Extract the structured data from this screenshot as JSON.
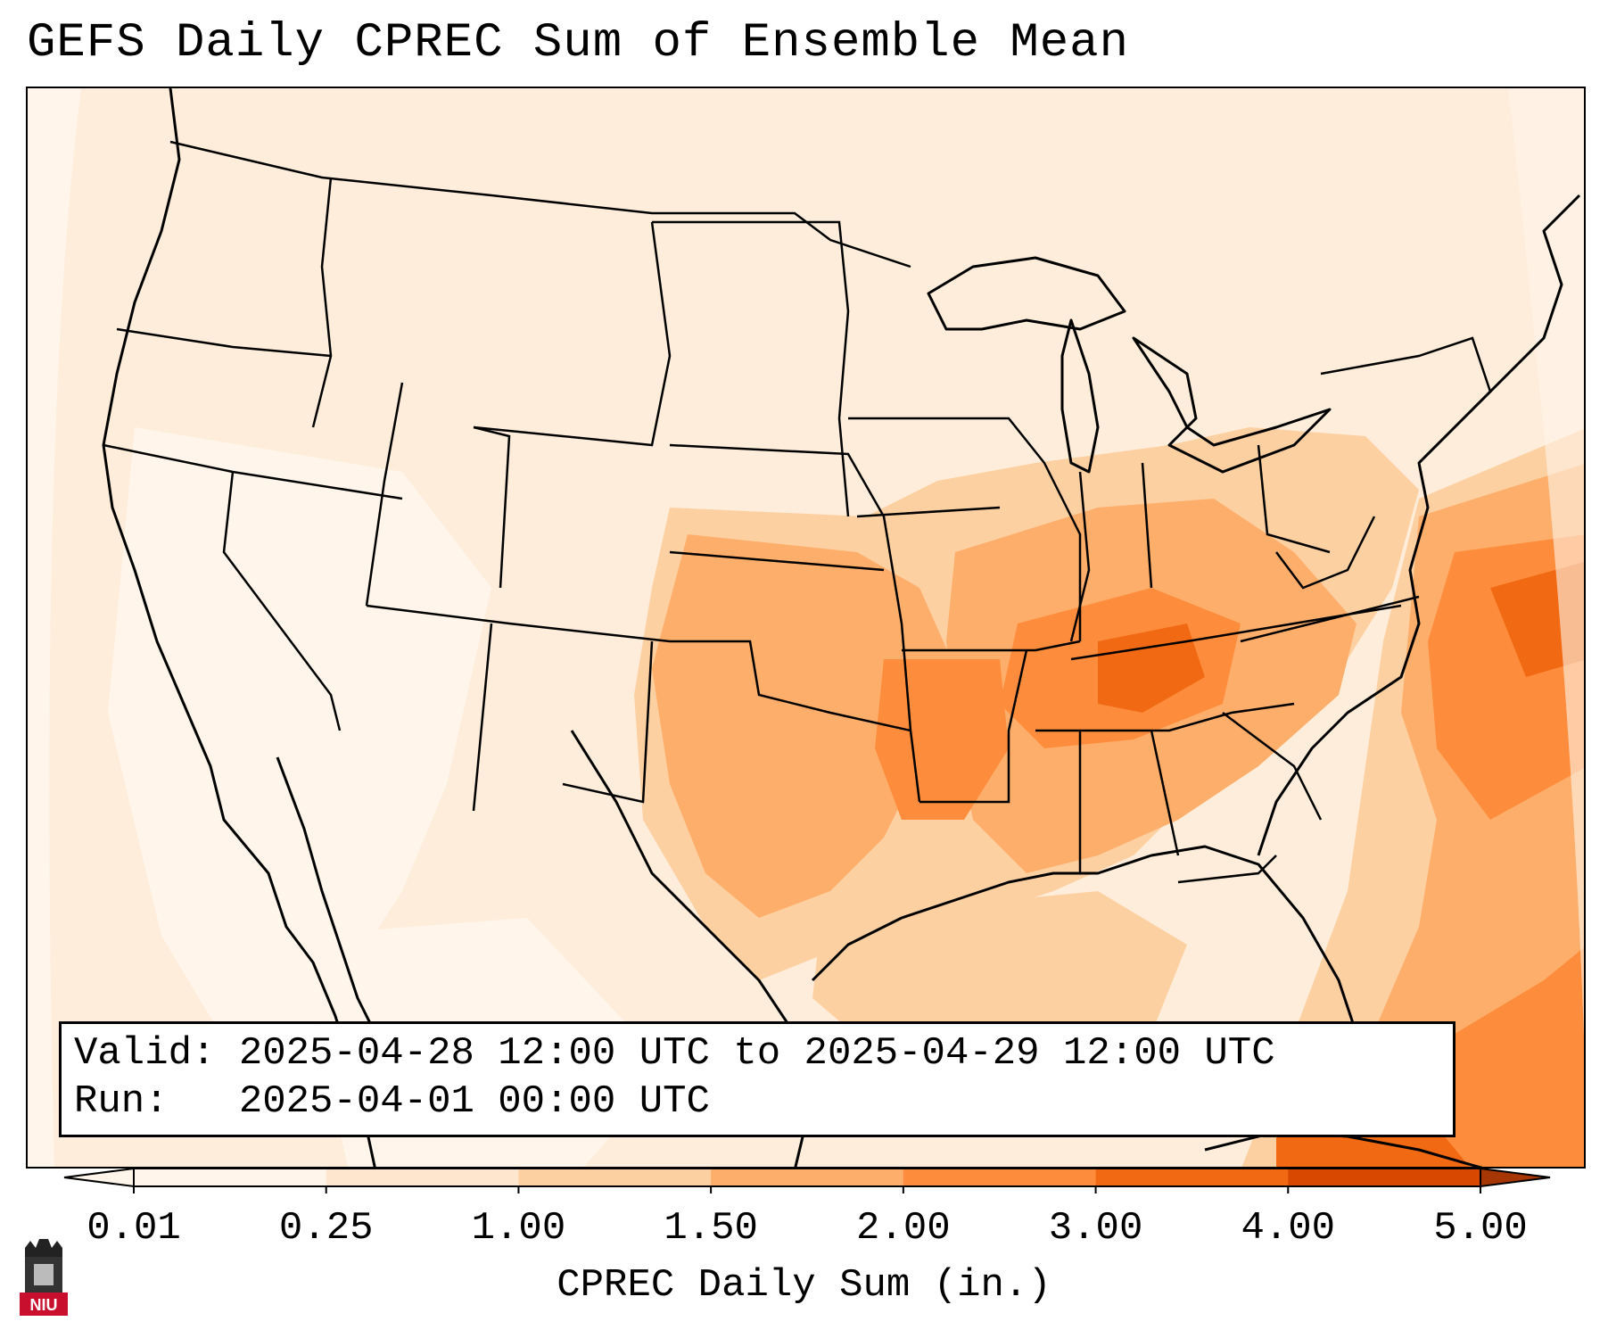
{
  "title": "GEFS Daily CPREC Sum of Ensemble Mean",
  "info": {
    "valid": "Valid: 2025-04-28 12:00 UTC to 2025-04-29 12:00 UTC",
    "run": "Run:   2025-04-01 00:00 UTC"
  },
  "colorbar": {
    "label": "CPREC Daily Sum (in.)",
    "ticks": [
      "0.01",
      "0.25",
      "1.00",
      "1.50",
      "2.00",
      "3.00",
      "4.00",
      "5.00"
    ],
    "colors": [
      "#fff5eb",
      "#fee6ce",
      "#fdd0a2",
      "#fdae6b",
      "#fd8d3c",
      "#f16913",
      "#d94801",
      "#a63603"
    ]
  },
  "logo": {
    "text": "NIU",
    "icon": "university-logo-icon",
    "color": "#c8102e"
  }
}
